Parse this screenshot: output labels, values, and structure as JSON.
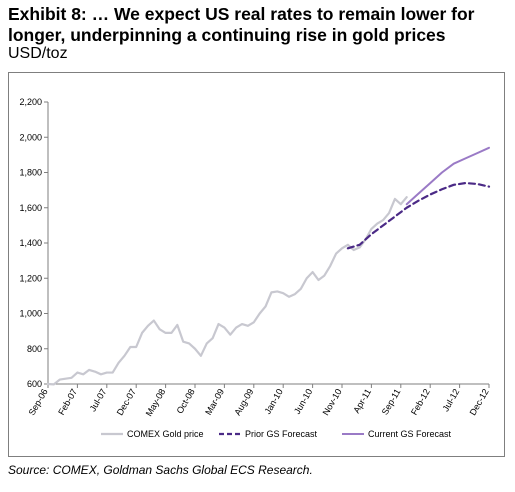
{
  "header": {
    "title": "Exhibit 8: … We expect US real rates to remain lower for longer, underpinning a continuing rise in gold prices",
    "unit": "USD/toz"
  },
  "footer": {
    "source": "Source: COMEX, Goldman Sachs Global ECS Research."
  },
  "colors": {
    "comex": "#c8c8d0",
    "prior": "#4b2a86",
    "current": "#9a7ac6",
    "axis": "#7f7f7f"
  },
  "chart_data": {
    "type": "line",
    "title": "Exhibit 8: … We expect US real rates to remain lower for longer, underpinning a continuing rise in gold prices",
    "ylabel": "USD/toz",
    "xlabel": "",
    "ylim": [
      600,
      2200
    ],
    "yticks": [
      600,
      800,
      1000,
      1200,
      1400,
      1600,
      1800,
      2000,
      2200
    ],
    "ytick_labels": [
      "600",
      "800",
      "1,000",
      "1,200",
      "1,400",
      "1,600",
      "1,800",
      "2,000",
      "2,200"
    ],
    "xlim": [
      "Sep-06",
      "Dec-12"
    ],
    "xtick_labels": [
      "Sep-06",
      "Feb-07",
      "Jul-07",
      "Dec-07",
      "May-08",
      "Oct-08",
      "Mar-09",
      "Aug-09",
      "Jan-10",
      "Jun-10",
      "Nov-10",
      "Apr-11",
      "Sep-11",
      "Feb-12",
      "Jul-12",
      "Dec-12"
    ],
    "grid": false,
    "legend_position": "bottom",
    "series": [
      {
        "name": "COMEX Gold price",
        "style": "solid",
        "x": [
          "Sep-06",
          "Oct-06",
          "Nov-06",
          "Dec-06",
          "Jan-07",
          "Feb-07",
          "Mar-07",
          "Apr-07",
          "May-07",
          "Jun-07",
          "Jul-07",
          "Aug-07",
          "Sep-07",
          "Oct-07",
          "Nov-07",
          "Dec-07",
          "Jan-08",
          "Feb-08",
          "Mar-08",
          "Apr-08",
          "May-08",
          "Jun-08",
          "Jul-08",
          "Aug-08",
          "Sep-08",
          "Oct-08",
          "Nov-08",
          "Dec-08",
          "Jan-09",
          "Feb-09",
          "Mar-09",
          "Apr-09",
          "May-09",
          "Jun-09",
          "Jul-09",
          "Aug-09",
          "Sep-09",
          "Oct-09",
          "Nov-09",
          "Dec-09",
          "Jan-10",
          "Feb-10",
          "Mar-10",
          "Apr-10",
          "May-10",
          "Jun-10",
          "Jul-10",
          "Aug-10",
          "Sep-10",
          "Oct-10",
          "Nov-10",
          "Dec-10",
          "Jan-11",
          "Feb-11",
          "Mar-11",
          "Apr-11",
          "May-11",
          "Jun-11",
          "Jul-11",
          "Aug-11",
          "Sep-11",
          "Oct-11"
        ],
        "values": [
          600,
          598,
          625,
          630,
          635,
          665,
          655,
          680,
          670,
          655,
          665,
          665,
          720,
          760,
          810,
          810,
          890,
          930,
          960,
          910,
          890,
          890,
          935,
          840,
          830,
          800,
          760,
          830,
          860,
          940,
          920,
          880,
          920,
          940,
          930,
          950,
          1000,
          1040,
          1120,
          1125,
          1115,
          1095,
          1110,
          1140,
          1200,
          1235,
          1190,
          1215,
          1270,
          1340,
          1370,
          1390,
          1360,
          1375,
          1420,
          1480,
          1510,
          1530,
          1570,
          1650,
          1620,
          1660
        ]
      },
      {
        "name": "Prior GS Forecast",
        "style": "dashed",
        "x": [
          "Dec-10",
          "Feb-11",
          "Apr-11",
          "Jun-11",
          "Aug-11",
          "Oct-11",
          "Dec-11",
          "Feb-12",
          "Apr-12",
          "Jun-12",
          "Aug-12",
          "Oct-12",
          "Dec-12"
        ],
        "values": [
          1370,
          1390,
          1450,
          1500,
          1550,
          1600,
          1640,
          1675,
          1705,
          1730,
          1740,
          1735,
          1720
        ]
      },
      {
        "name": "Current GS Forecast",
        "style": "solid",
        "x": [
          "Oct-11",
          "Dec-11",
          "Feb-12",
          "Apr-12",
          "Jun-12",
          "Aug-12",
          "Oct-12",
          "Dec-12"
        ],
        "values": [
          1620,
          1680,
          1740,
          1800,
          1850,
          1880,
          1910,
          1940
        ]
      }
    ]
  }
}
